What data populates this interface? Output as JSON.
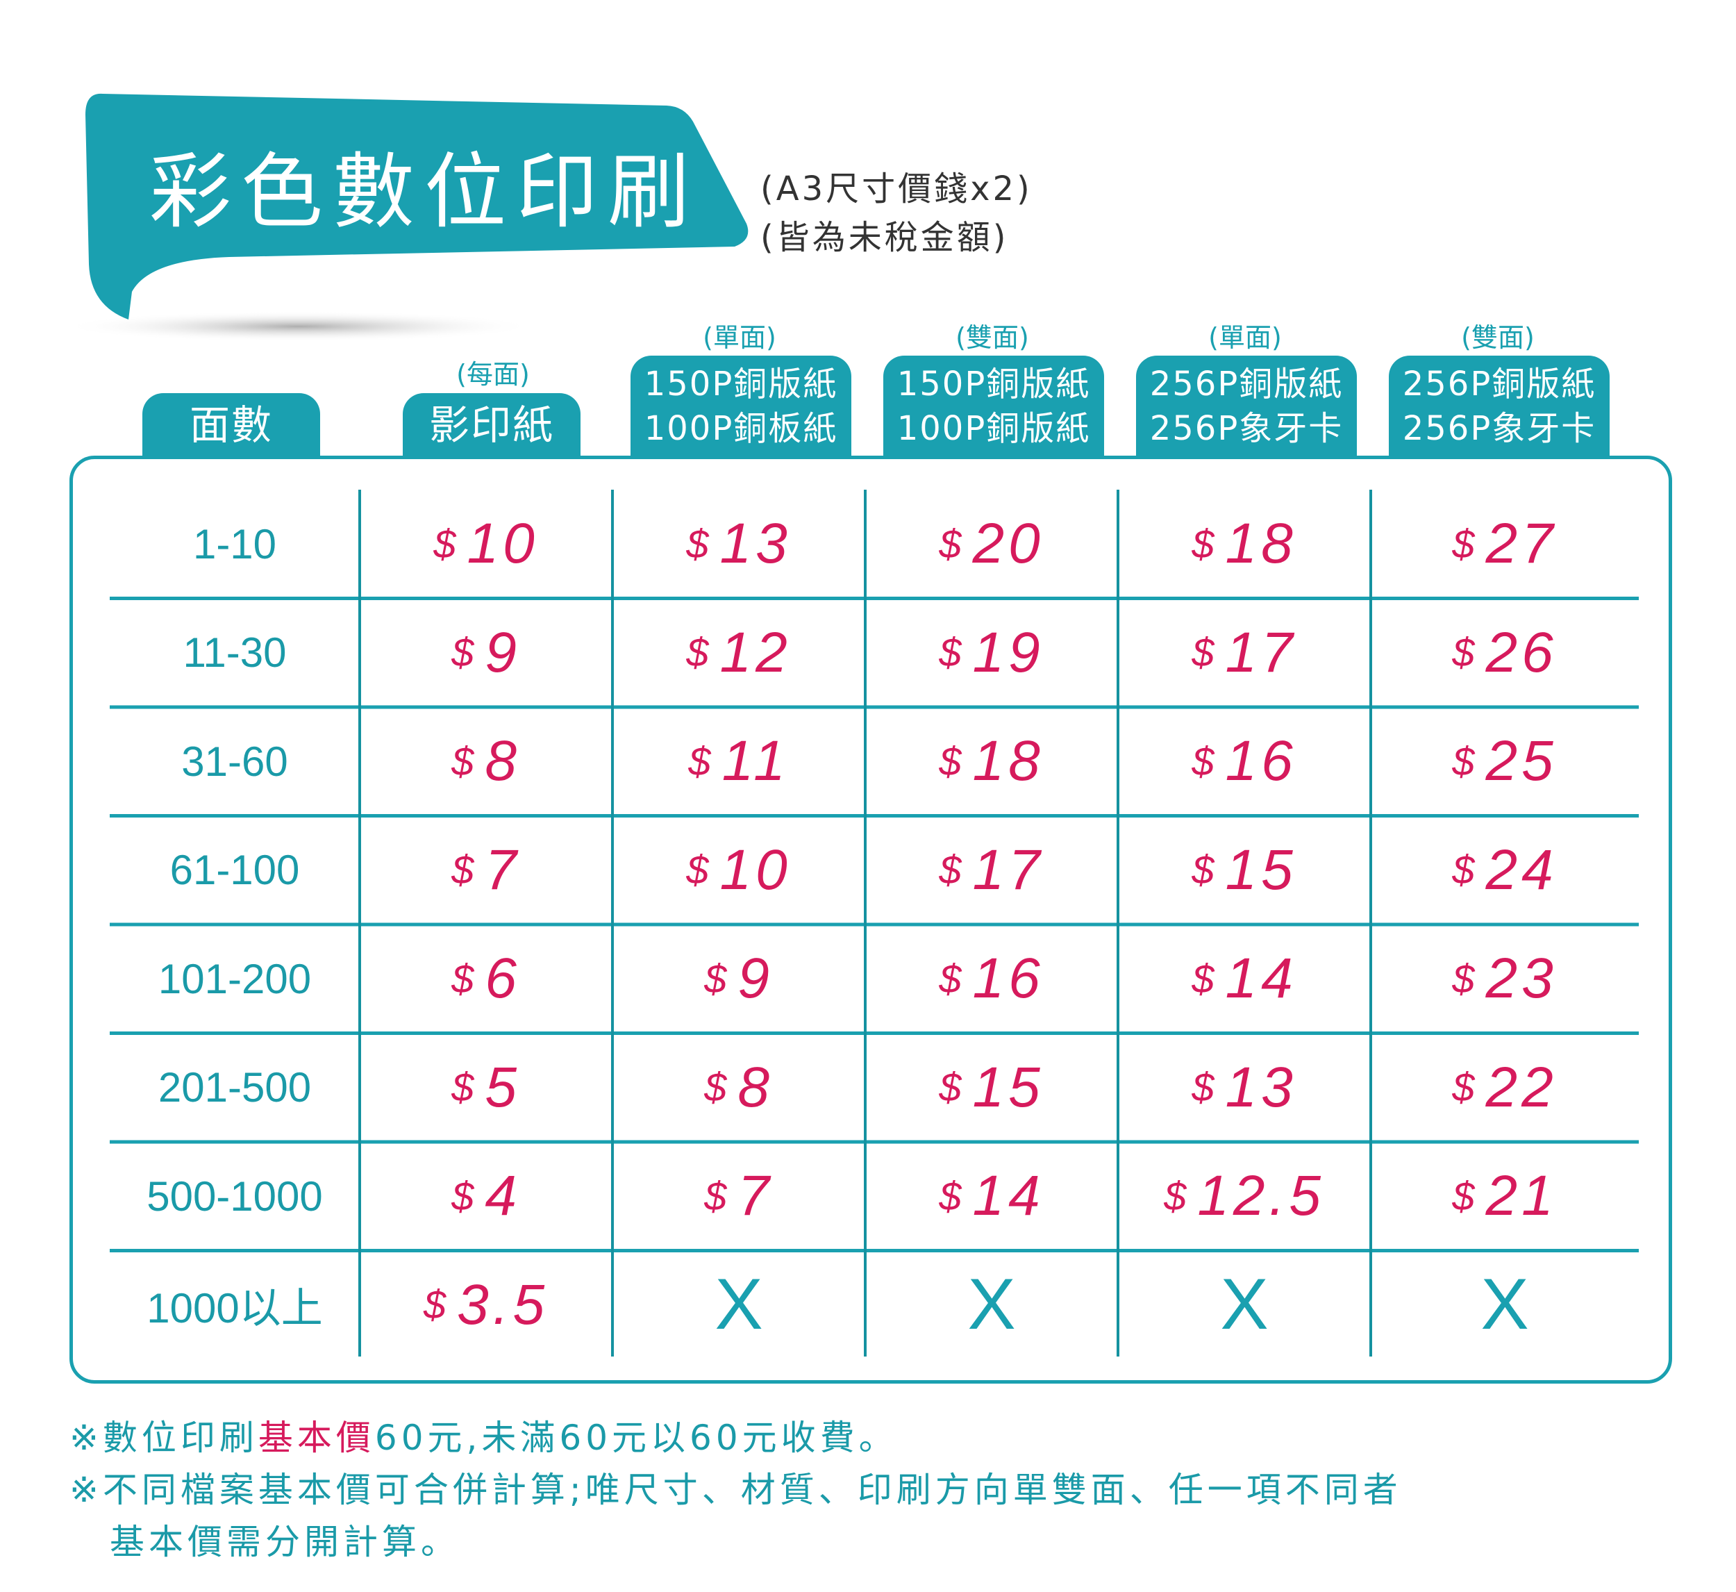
{
  "header": {
    "title": "彩色數位印刷",
    "note_size": "(A3尺寸價錢x2)",
    "note_tax": "(皆為未稅金額)"
  },
  "columns": [
    {
      "note": "",
      "lines": [
        "面數"
      ]
    },
    {
      "note": "(每面)",
      "lines": [
        "影印紙"
      ]
    },
    {
      "note": "(單面)",
      "lines": [
        "150P銅版紙",
        "100P銅板紙"
      ]
    },
    {
      "note": "(雙面)",
      "lines": [
        "150P銅版紙",
        "100P銅版紙"
      ]
    },
    {
      "note": "(單面)",
      "lines": [
        "256P銅版紙",
        "256P象牙卡"
      ]
    },
    {
      "note": "(雙面)",
      "lines": [
        "256P銅版紙",
        "256P象牙卡"
      ]
    }
  ],
  "currency_symbol": "$",
  "rows": [
    {
      "range": "1-10",
      "prices": [
        "10",
        "13",
        "20",
        "18",
        "27"
      ]
    },
    {
      "range": "11-30",
      "prices": [
        "9",
        "12",
        "19",
        "17",
        "26"
      ]
    },
    {
      "range": "31-60",
      "prices": [
        "8",
        "11",
        "18",
        "16",
        "25"
      ]
    },
    {
      "range": "61-100",
      "prices": [
        "7",
        "10",
        "17",
        "15",
        "24"
      ]
    },
    {
      "range": "101-200",
      "prices": [
        "6",
        "9",
        "16",
        "14",
        "23"
      ]
    },
    {
      "range": "201-500",
      "prices": [
        "5",
        "8",
        "15",
        "13",
        "22"
      ]
    },
    {
      "range": "500-1000",
      "prices": [
        "4",
        "7",
        "14",
        "12.5",
        "21"
      ]
    },
    {
      "range": "1000以上",
      "prices": [
        "3.5",
        "X",
        "X",
        "X",
        "X"
      ]
    }
  ],
  "unavailable_mark": "X",
  "footnotes": {
    "line1_prefix": "※數位印刷",
    "line1_highlight": "基本價",
    "line1_suffix": "60元,未滿60元以60元收費。",
    "line2": "※不同檔案基本價可合併計算;唯尺寸、材質、印刷方向單雙面、任一項不同者",
    "line3": "基本價需分開計算。"
  },
  "colors": {
    "accent": "#1aa0b0",
    "price": "#d61a5c"
  }
}
